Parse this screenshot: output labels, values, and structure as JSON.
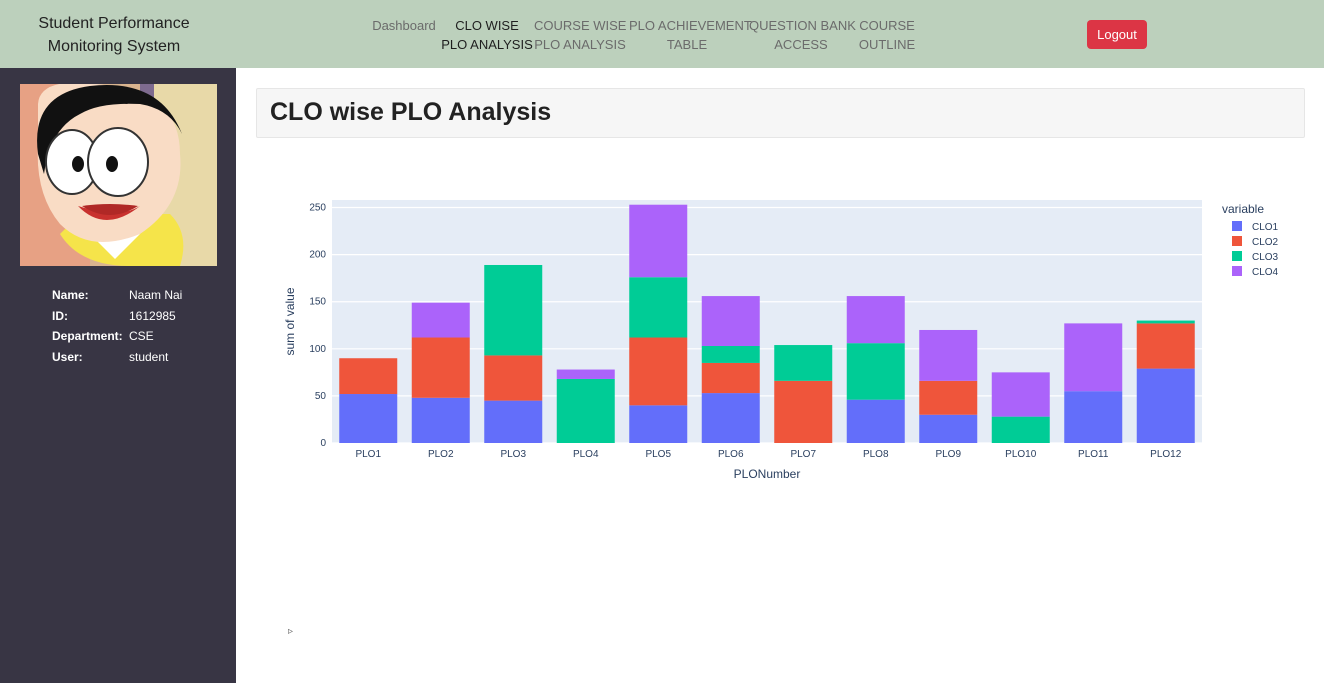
{
  "app": {
    "title_line1": "Student Performance",
    "title_line2": "Monitoring System"
  },
  "nav": {
    "items": [
      {
        "l1": "Dashboard",
        "l2": ""
      },
      {
        "l1": "CLO WISE",
        "l2": "PLO ANALYSIS"
      },
      {
        "l1": "COURSE WISE",
        "l2": "PLO ANALYSIS"
      },
      {
        "l1": "PLO ACHIEVEMENT",
        "l2": "TABLE"
      },
      {
        "l1": "QUESTION BANK",
        "l2": "ACCESS"
      },
      {
        "l1": "COURSE",
        "l2": "OUTLINE"
      }
    ],
    "active_index": 1,
    "logout_label": "Logout"
  },
  "profile": {
    "name_key": "Name:",
    "name_val": "Naam Nai",
    "id_key": "ID:",
    "id_val": "1612985",
    "dept_key": "Department:",
    "dept_val": "CSE",
    "user_key": "User:",
    "user_val": "student"
  },
  "page": {
    "title": "CLO wise PLO Analysis"
  },
  "colors": {
    "nav_bg": "#bcd0bc",
    "sidebar_bg": "#383544",
    "logout": "#dc3545",
    "plot_bg": "#e5ecf6"
  },
  "chart_data": {
    "type": "bar",
    "stacked": true,
    "categories": [
      "PLO1",
      "PLO2",
      "PLO3",
      "PLO4",
      "PLO5",
      "PLO6",
      "PLO7",
      "PLO8",
      "PLO9",
      "PLO10",
      "PLO11",
      "PLO12"
    ],
    "series": [
      {
        "name": "CLO1",
        "color": "#636efa",
        "values": [
          52,
          48,
          45,
          0,
          40,
          53,
          0,
          46,
          30,
          0,
          55,
          79
        ]
      },
      {
        "name": "CLO2",
        "color": "#ef553b",
        "values": [
          38,
          64,
          48,
          0,
          72,
          32,
          66,
          0,
          36,
          0,
          0,
          48
        ]
      },
      {
        "name": "CLO3",
        "color": "#00cc96",
        "values": [
          0,
          0,
          96,
          68,
          64,
          18,
          38,
          60,
          0,
          28,
          0,
          3
        ]
      },
      {
        "name": "CLO4",
        "color": "#ab63fa",
        "values": [
          0,
          37,
          0,
          10,
          77,
          53,
          0,
          50,
          54,
          47,
          72,
          0
        ]
      }
    ],
    "xlabel": "PLONumber",
    "ylabel": "sum of value",
    "legend_title": "variable",
    "legend_position": "right",
    "ylim": [
      0,
      258
    ],
    "yticks": [
      "0",
      "50",
      "100",
      "150",
      "200",
      "250"
    ],
    "grid": true
  }
}
